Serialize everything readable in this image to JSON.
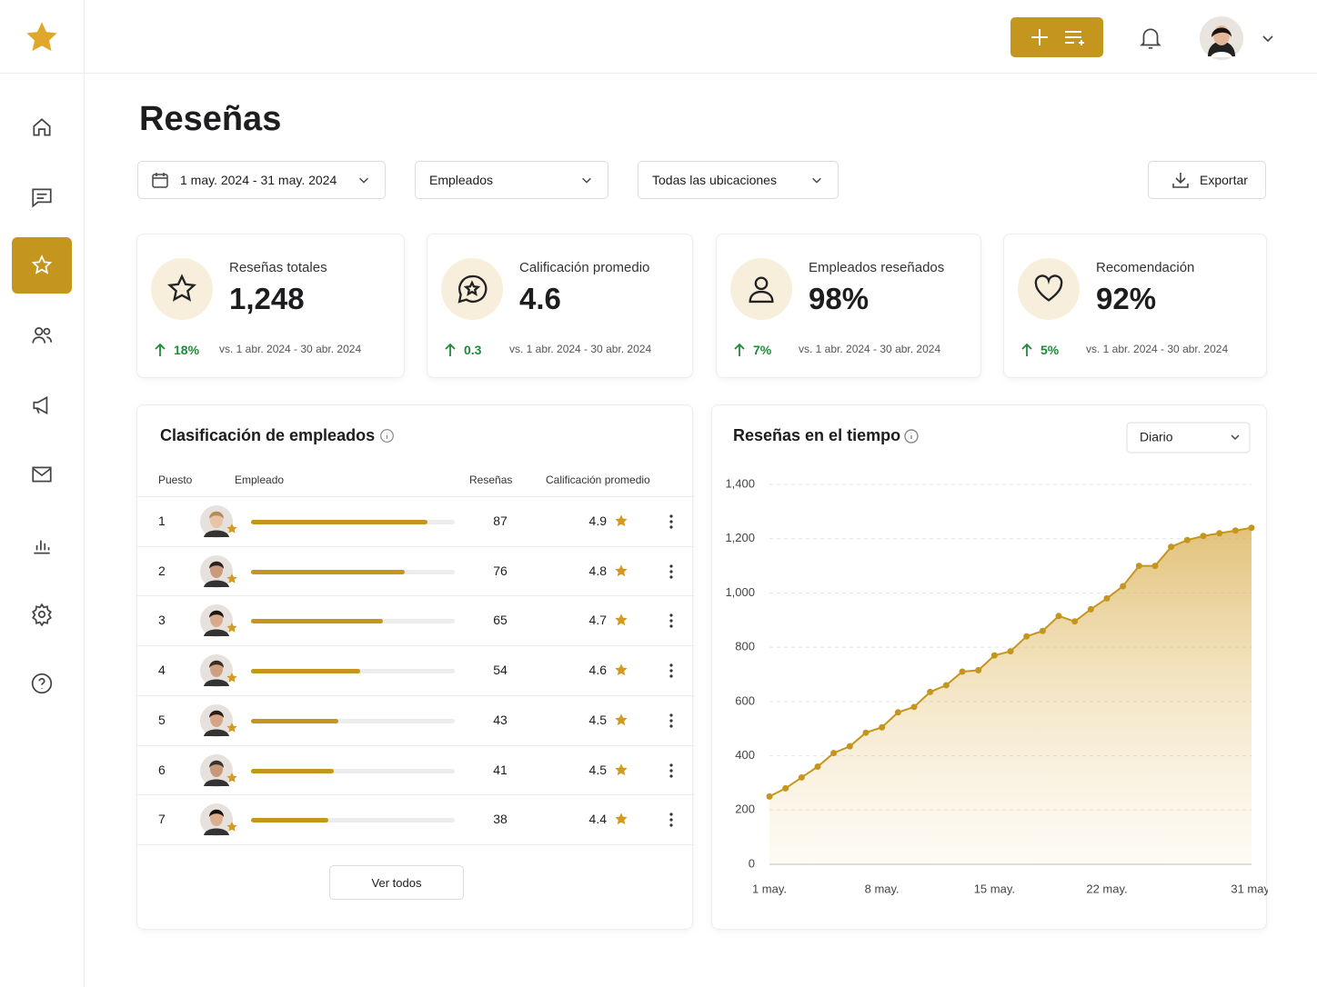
{
  "header": {
    "title": "Reseñas"
  },
  "filters": {
    "date_range": "1 may. 2024 - 31 may. 2024",
    "employees": "Empleados",
    "locations": "Todas las ubicaciones",
    "export": "Exportar"
  },
  "kpis": [
    {
      "label": "Reseñas totales",
      "value": "1,248",
      "change": "18%",
      "compare": "vs. 1 abr. 2024 - 30 abr. 2024"
    },
    {
      "label": "Calificación promedio",
      "value": "4.6",
      "change": "0.3",
      "compare": "vs. 1 abr. 2024 - 30 abr. 2024"
    },
    {
      "label": "Empleados reseñados",
      "value": "98%",
      "change": "7%",
      "compare": "vs. 1 abr. 2024 - 30 abr. 2024"
    },
    {
      "label": "Recomendación",
      "value": "92%",
      "change": "5%",
      "compare": "vs. 1 abr. 2024 - 30 abr. 2024"
    }
  ],
  "ranking": {
    "title": "Clasificación de empleados",
    "columns": [
      "Puesto",
      "Empleado",
      "Reseñas",
      "Calificación promedio"
    ],
    "rows": [
      {
        "rank": 1,
        "reviews": 87,
        "rating": 4.9
      },
      {
        "rank": 2,
        "reviews": 76,
        "rating": 4.8
      },
      {
        "rank": 3,
        "reviews": 65,
        "rating": 4.7
      },
      {
        "rank": 4,
        "reviews": 54,
        "rating": 4.6
      },
      {
        "rank": 5,
        "reviews": 43,
        "rating": 4.5
      },
      {
        "rank": 6,
        "reviews": 41,
        "rating": 4.5
      },
      {
        "rank": 7,
        "reviews": 38,
        "rating": 4.4
      }
    ],
    "view_all": "Ver todos"
  },
  "chart_data": {
    "type": "line",
    "title": "Reseñas en el tiempo",
    "period": "Diario",
    "color": "#c4961e",
    "categories": [
      "1 may.",
      null,
      null,
      null,
      null,
      null,
      null,
      "8 may.",
      null,
      null,
      null,
      null,
      null,
      null,
      "15 may.",
      null,
      null,
      null,
      null,
      null,
      null,
      "22 may.",
      null,
      null,
      null,
      null,
      null,
      null,
      null,
      null,
      "31 may."
    ],
    "values": [
      250,
      280,
      320,
      360,
      410,
      435,
      485,
      505,
      560,
      580,
      635,
      660,
      710,
      715,
      770,
      785,
      840,
      860,
      915,
      895,
      940,
      980,
      1025,
      1100,
      1100,
      1170,
      1195,
      1210,
      1220,
      1230,
      1240
    ],
    "ylim": [
      0,
      1400
    ],
    "yticks": [
      0,
      200,
      400,
      600,
      800,
      {
        "value": 1000,
        "label": "1,000"
      },
      {
        "value": 1200,
        "label": "1,200"
      },
      {
        "value": 1400,
        "label": "1,400"
      }
    ],
    "grid": true
  }
}
